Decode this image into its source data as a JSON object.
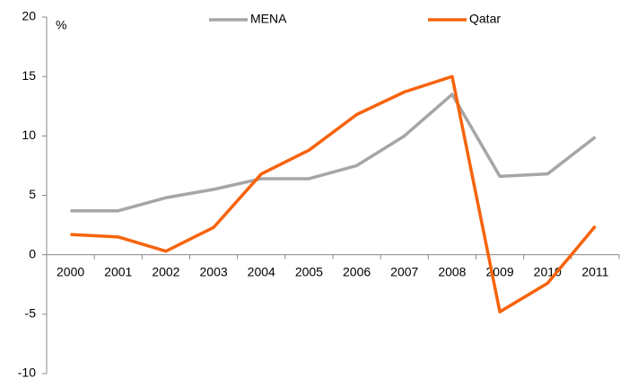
{
  "chart_data": {
    "type": "line",
    "y_label": "%",
    "categories": [
      "2000",
      "2001",
      "2002",
      "2003",
      "2004",
      "2005",
      "2006",
      "2007",
      "2008",
      "2009",
      "2010",
      "2011"
    ],
    "series": [
      {
        "name": "MENA",
        "color": "#a6a6a6",
        "values": [
          3.7,
          3.7,
          4.8,
          5.5,
          6.4,
          6.4,
          7.5,
          10.0,
          13.5,
          6.6,
          6.8,
          9.9
        ]
      },
      {
        "name": "Qatar",
        "color": "#f7630c",
        "values": [
          1.7,
          1.5,
          0.3,
          2.3,
          6.8,
          8.8,
          11.8,
          13.7,
          15.0,
          -4.8,
          -2.4,
          2.4
        ]
      }
    ],
    "ylim": [
      -10,
      20
    ],
    "yticks": [
      -10,
      -5,
      0,
      5,
      10,
      15,
      20
    ],
    "legend": "top"
  }
}
